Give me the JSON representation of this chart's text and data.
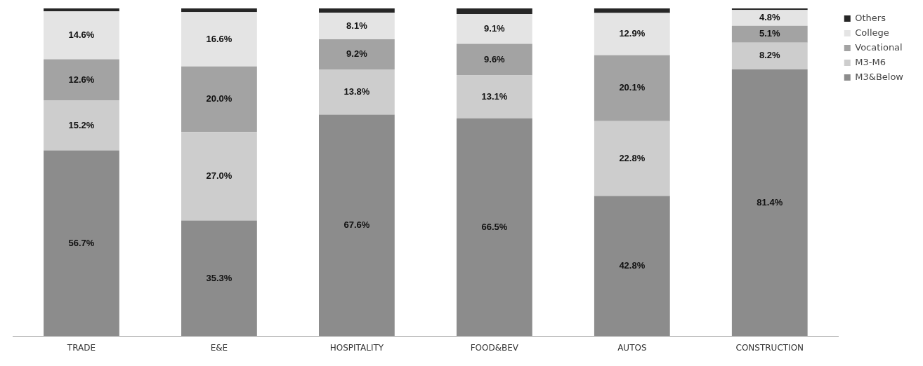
{
  "chart_data": {
    "type": "bar",
    "stacked": true,
    "categories": [
      "TRADE",
      "E&E",
      "HOSPITALITY",
      "FOOD&BEV",
      "AUTOS",
      "CONSTRUCTION"
    ],
    "series": [
      {
        "name": "M3&Below",
        "color": "#8c8c8c",
        "values": [
          56.7,
          35.3,
          67.6,
          66.5,
          42.8,
          81.4
        ],
        "value_labels": [
          "56.7%",
          "35.3%",
          "67.6%",
          "66.5%",
          "42.8%",
          "81.4%"
        ]
      },
      {
        "name": "M3-M6",
        "color": "#cdcdcd",
        "values": [
          15.2,
          27.0,
          13.8,
          13.1,
          22.8,
          8.2
        ],
        "value_labels": [
          "15.2%",
          "27.0%",
          "13.8%",
          "13.1%",
          "22.8%",
          "8.2%"
        ]
      },
      {
        "name": "Vocational",
        "color": "#a3a3a3",
        "values": [
          12.6,
          20.0,
          9.2,
          9.6,
          20.1,
          5.1
        ],
        "value_labels": [
          "12.6%",
          "20.0%",
          "9.2%",
          "9.6%",
          "20.1%",
          "5.1%"
        ]
      },
      {
        "name": "College",
        "color": "#e4e4e4",
        "values": [
          14.6,
          16.6,
          8.1,
          9.1,
          12.9,
          4.8
        ],
        "value_labels": [
          "14.6%",
          "16.6%",
          "8.1%",
          "9.1%",
          "12.9%",
          "4.8%"
        ]
      },
      {
        "name": "Others",
        "color": "#262626",
        "values": [
          0.9,
          1.1,
          1.3,
          1.7,
          1.4,
          0.5
        ],
        "value_labels": [
          null,
          null,
          null,
          null,
          null,
          null
        ]
      }
    ],
    "ylim": [
      0,
      100
    ],
    "tick_labels": "x",
    "legend": "right"
  }
}
